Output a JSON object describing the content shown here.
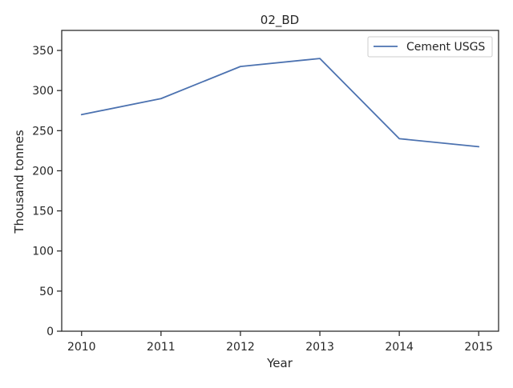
{
  "chart_data": {
    "type": "line",
    "title": "02_BD",
    "xlabel": "Year",
    "ylabel": "Thousand tonnes",
    "x": [
      2010,
      2011,
      2012,
      2013,
      2014,
      2015
    ],
    "series": [
      {
        "name": "Cement USGS",
        "values": [
          270,
          290,
          330,
          340,
          240,
          230
        ],
        "color": "#4c72b0"
      }
    ],
    "xticks": [
      "2010",
      "2011",
      "2012",
      "2013",
      "2014",
      "2015"
    ],
    "yticks": [
      "0",
      "50",
      "100",
      "150",
      "200",
      "250",
      "300",
      "350"
    ],
    "xlim": [
      2009.75,
      2015.25
    ],
    "ylim": [
      0,
      375
    ],
    "grid": false,
    "legend_position": "top-right"
  }
}
